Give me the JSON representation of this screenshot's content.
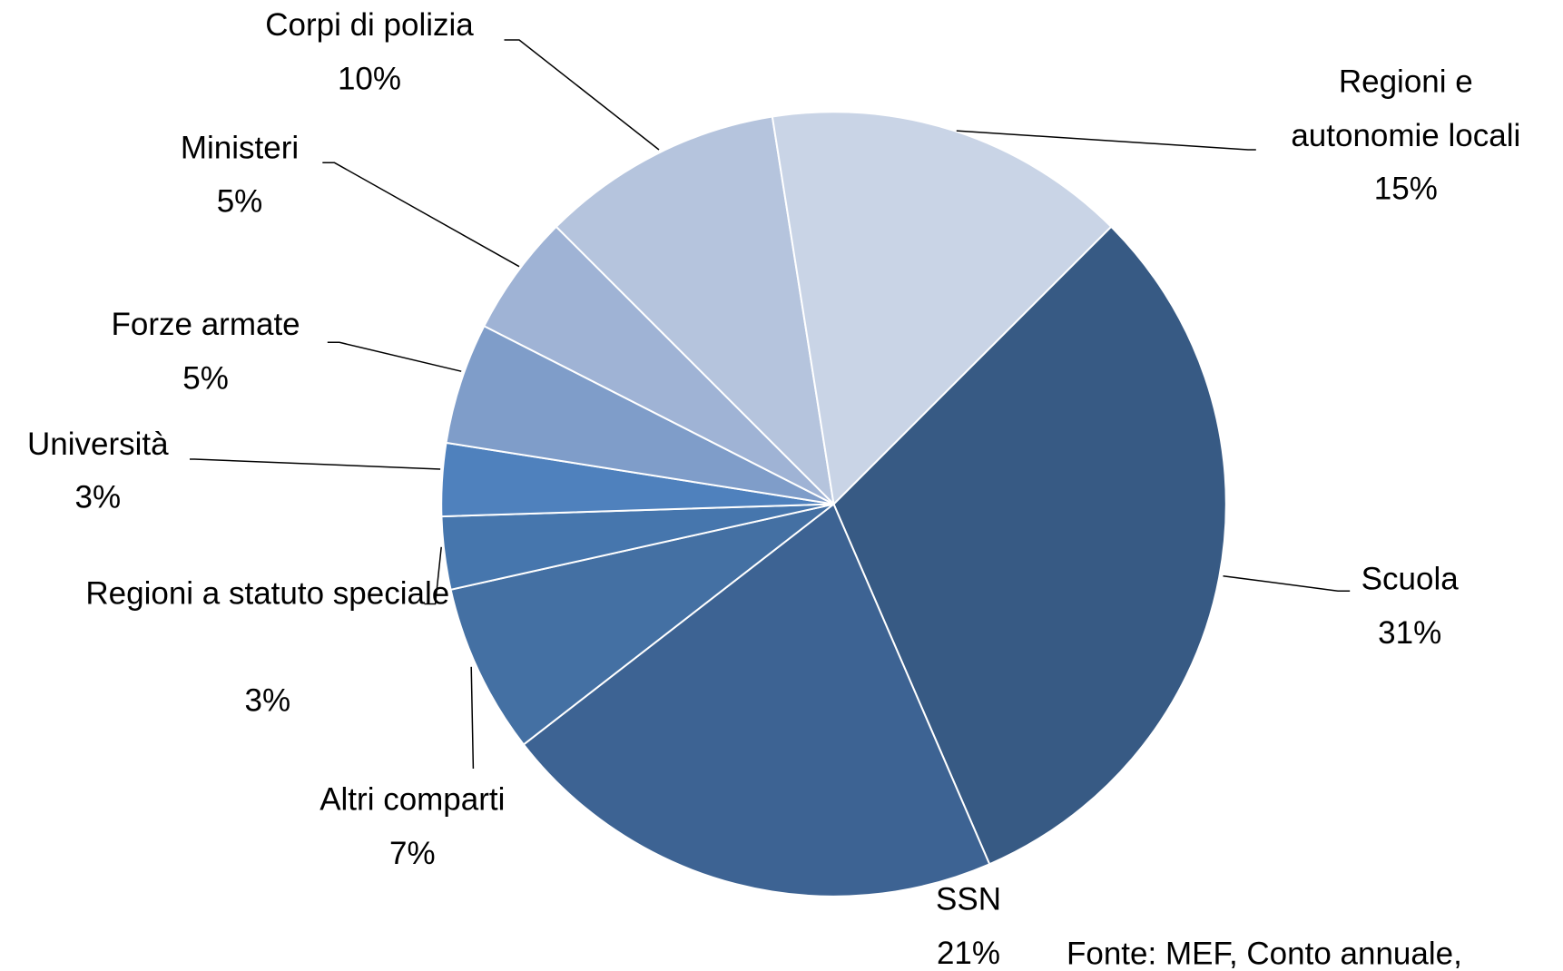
{
  "chart_data": {
    "type": "pie",
    "categories": [
      "Scuola",
      "SSN",
      "Altri comparti",
      "Regioni a statuto speciale",
      "Università",
      "Forze armate",
      "Ministeri",
      "Corpi di polizia",
      "Regioni e autonomie locali"
    ],
    "values": [
      31,
      21,
      7,
      3,
      3,
      5,
      5,
      10,
      15
    ],
    "value_labels": [
      "31%",
      "21%",
      "7%",
      "3%",
      "3%",
      "5%",
      "5%",
      "10%",
      "15%"
    ],
    "colors": [
      "#375a84",
      "#3d6393",
      "#4470a3",
      "#4676ad",
      "#4f81bd",
      "#7f9dc9",
      "#9fb3d5",
      "#b5c4dd",
      "#c9d4e6"
    ],
    "source": "Fonte: MEF, Conto annuale,"
  }
}
